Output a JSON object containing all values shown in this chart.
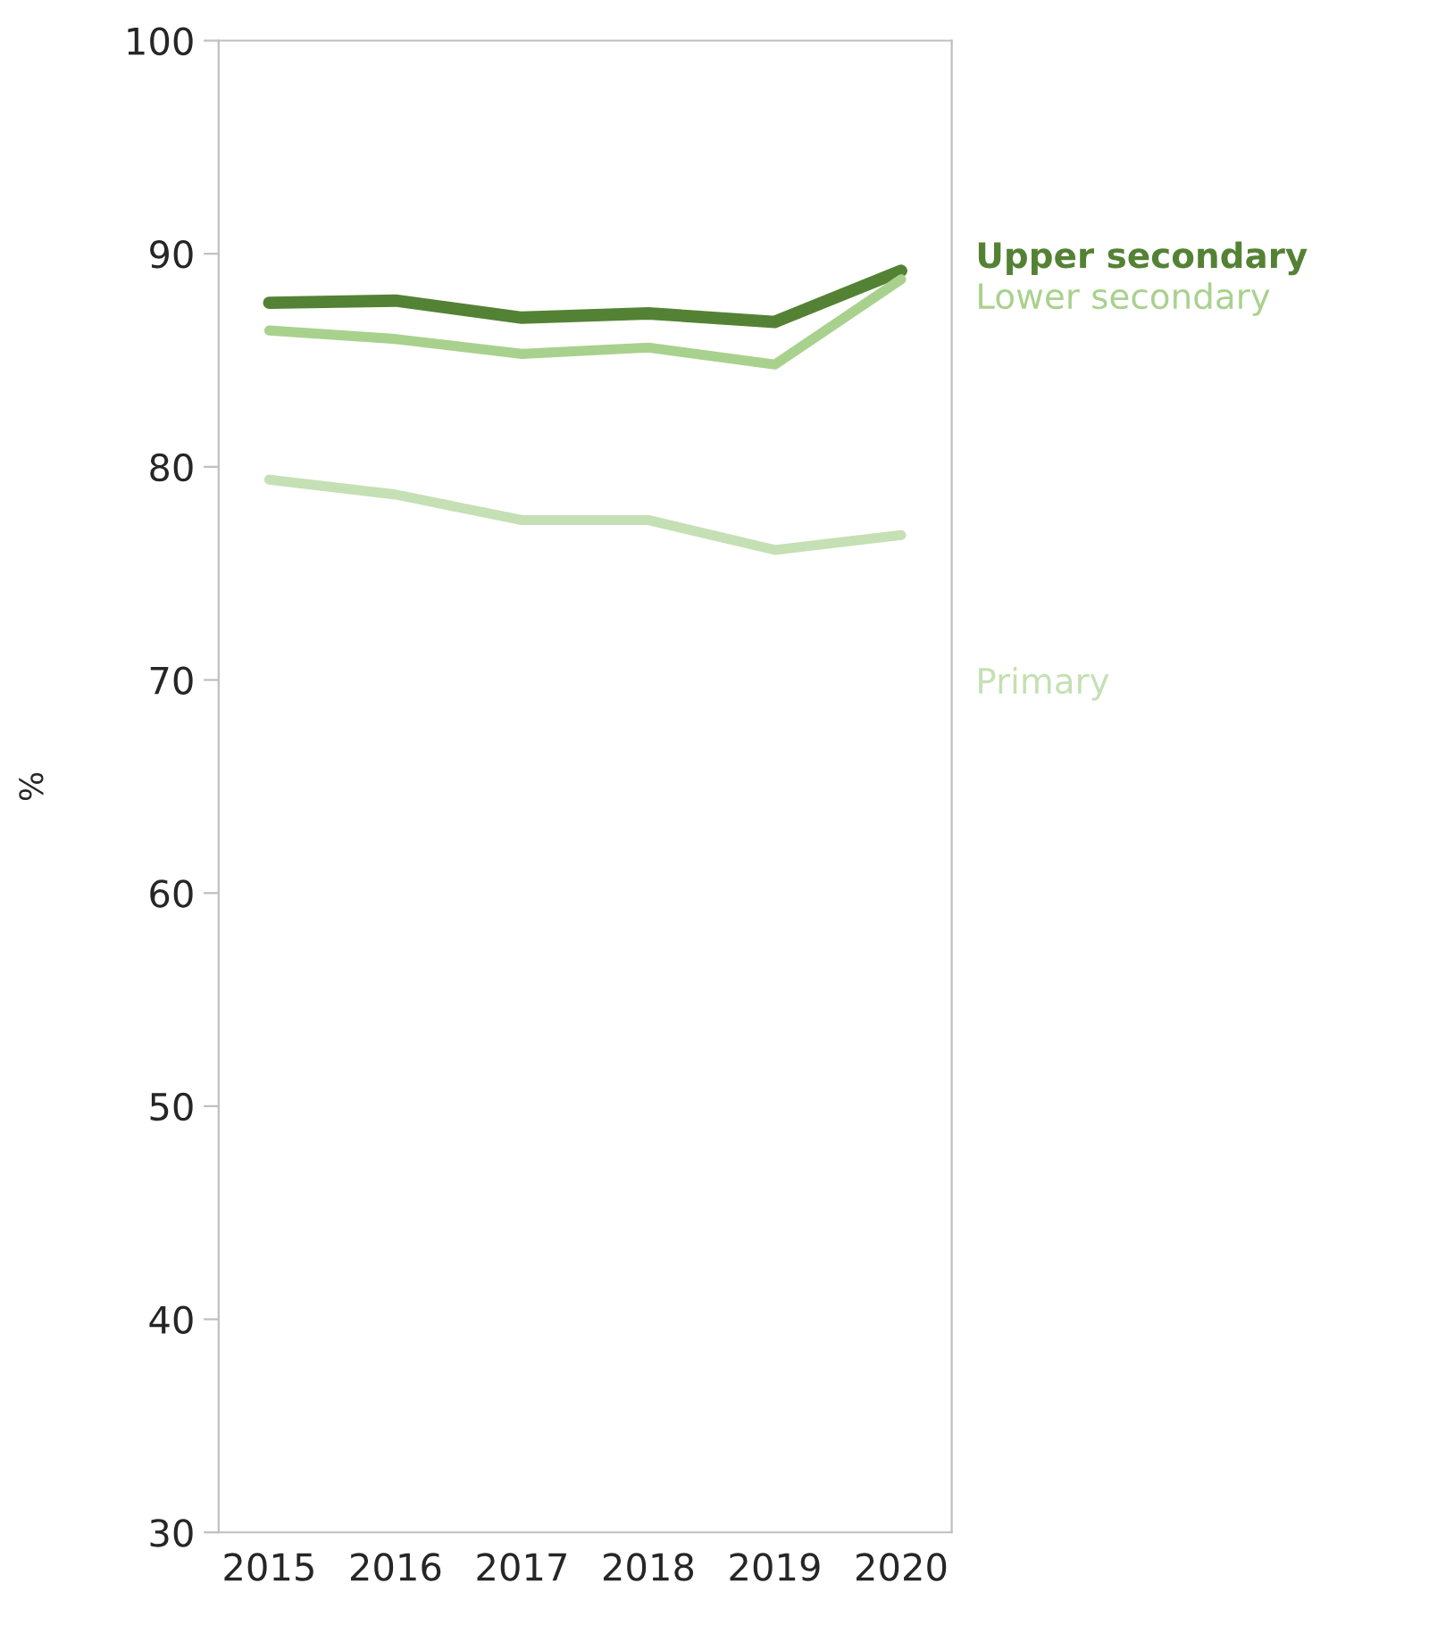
{
  "chart_data": {
    "type": "line",
    "ylabel": "%",
    "categories": [
      "2015",
      "2016",
      "2017",
      "2018",
      "2019",
      "2020"
    ],
    "ylim": [
      30,
      100
    ],
    "yticks": [
      30,
      40,
      50,
      60,
      70,
      80,
      90,
      100
    ],
    "grid": false,
    "legend": false,
    "series": [
      {
        "name": "Upper secondary",
        "color": "#548235",
        "values": [
          87.7,
          87.8,
          87.0,
          87.2,
          86.8,
          89.2
        ]
      },
      {
        "name": "Lower secondary",
        "color": "#a9d18e",
        "values": [
          86.4,
          86.0,
          85.3,
          85.6,
          84.8,
          88.8
        ]
      },
      {
        "name": "Primary",
        "color": "#c5e0b4",
        "values": [
          79.4,
          78.7,
          77.5,
          77.5,
          76.1,
          76.8
        ]
      }
    ]
  }
}
